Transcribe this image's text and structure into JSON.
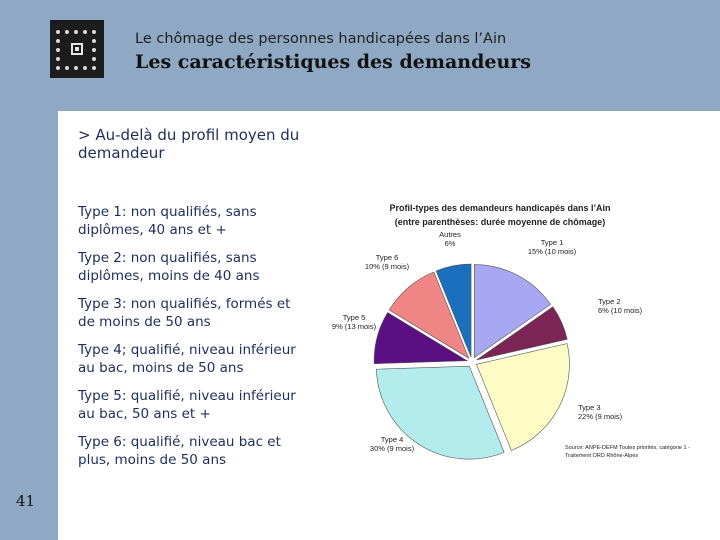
{
  "header": {
    "subtitle": "Le chômage des personnes handicapées dans l’Ain",
    "title": "Les caractéristiques des demandeurs"
  },
  "section": {
    "heading": "> Au-delà du profil moyen du demandeur"
  },
  "types": [
    "Type 1: non qualifiés, sans diplômes, 40 ans et +",
    "Type 2: non qualifiés, sans diplômes, moins de 40 ans",
    "Type 3: non qualifiés, formés et de moins de 50 ans",
    "Type 4; qualifié, niveau inférieur au bac, moins de 50 ans",
    "Type 5: qualifié, niveau inférieur au bac, 50 ans et +",
    "Type 6: qualifié, niveau bac et plus, moins de 50 ans"
  ],
  "page_number": "41",
  "chart_data": {
    "type": "pie",
    "title": "Profil-types des demandeurs handicapés dans l’Ain",
    "subtitle": "(entre parenthèses: durée moyenne de chômage)",
    "slices": [
      {
        "label": "Type 1",
        "value_label": "15% (10 mois)",
        "value": 15,
        "color": "#a7a7f2"
      },
      {
        "label": "Type 2",
        "value_label": "6% (10 mois)",
        "value": 6,
        "color": "#7c2456"
      },
      {
        "label": "Type 3",
        "value_label": "22% (9 mois)",
        "value": 22,
        "color": "#fcfcc4"
      },
      {
        "label": "Type 4",
        "value_label": "30% (9 mois)",
        "value": 30,
        "color": "#b2ecec"
      },
      {
        "label": "Type 5",
        "value_label": "9% (13 mois)",
        "value": 9,
        "color": "#5c0f83"
      },
      {
        "label": "Type 6",
        "value_label": "10% (9 mois)",
        "value": 10,
        "color": "#f08585"
      },
      {
        "label": "Autres",
        "value_label": "6%",
        "value": 6,
        "color": "#1a6fbf"
      }
    ],
    "source": "Source: ANPE-DEFM Toutes priorités, catégorie 1 - Traitement ORD Rhône-Alpes"
  }
}
